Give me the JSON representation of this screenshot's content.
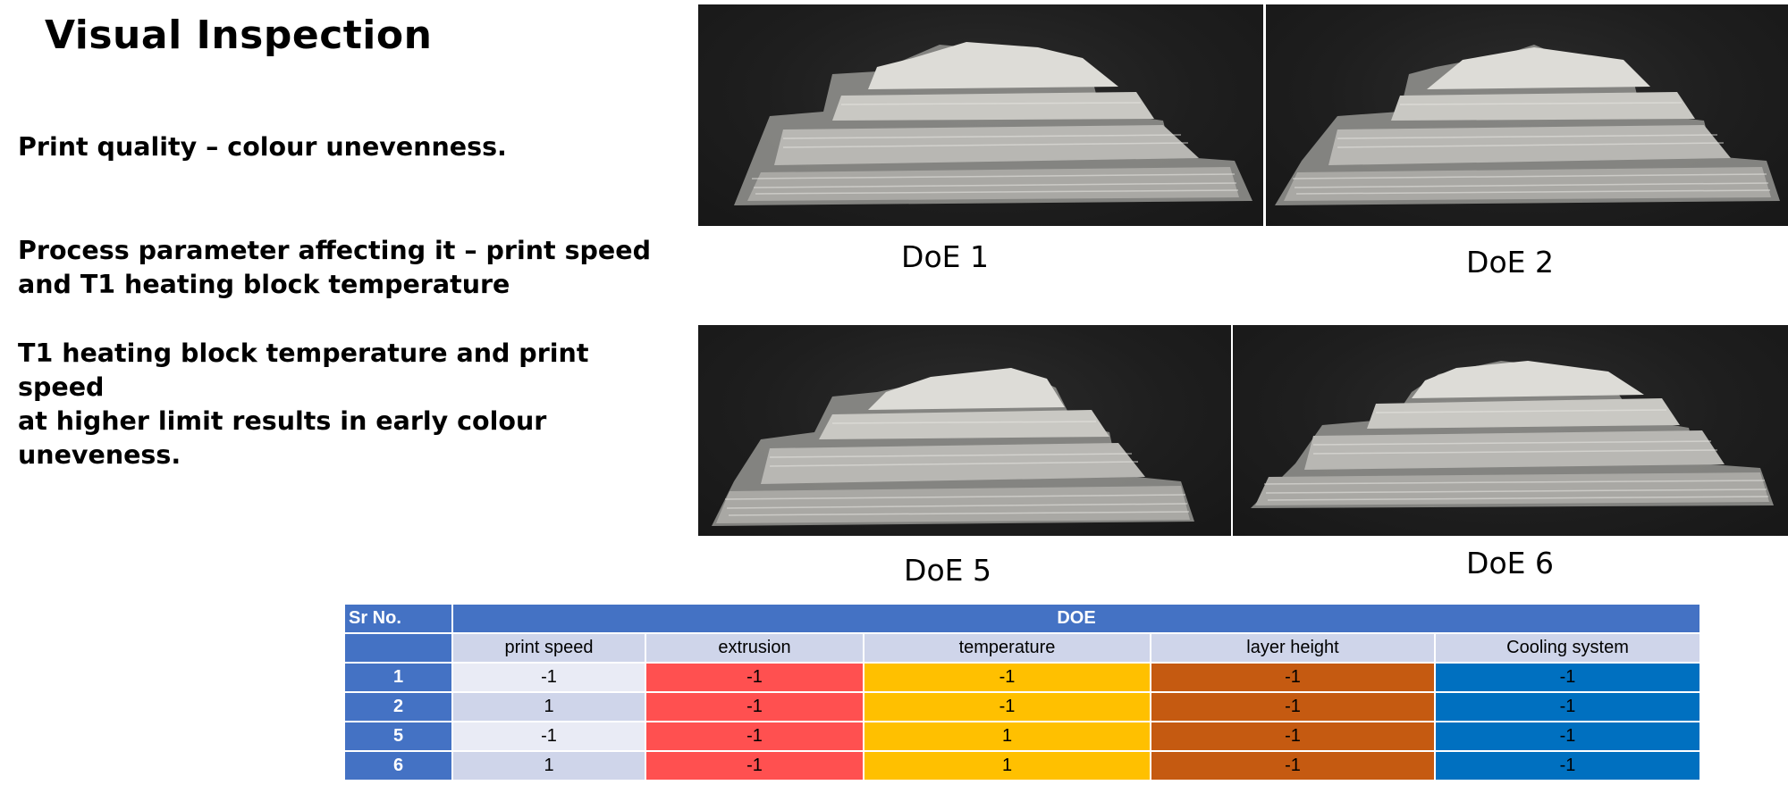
{
  "title": "Visual Inspection",
  "paragraphs": {
    "p1": "Print quality – colour unevenness.",
    "p2_line1": "Process parameter affecting it – print speed",
    "p2_line2": "and T1 heating block temperature",
    "p3_line1": "T1 heating block temperature and print speed",
    "p3_line2": "at higher limit results in early colour",
    "p3_line3": "uneveness."
  },
  "photos": [
    {
      "caption": "DoE 1"
    },
    {
      "caption": "DoE 2"
    },
    {
      "caption": "DoE 5"
    },
    {
      "caption": "DoE 6"
    }
  ],
  "table": {
    "sr_header": "Sr No.",
    "doe_header": "DOE",
    "columns": [
      "print speed",
      "extrusion",
      "temperature",
      "layer height",
      "Cooling system"
    ],
    "rows": [
      {
        "sr": "1",
        "values": [
          "-1",
          "-1",
          "-1",
          "-1",
          "-1"
        ]
      },
      {
        "sr": "2",
        "values": [
          "1",
          "-1",
          "-1",
          "-1",
          "-1"
        ]
      },
      {
        "sr": "5",
        "values": [
          "-1",
          "-1",
          "1",
          "-1",
          "-1"
        ]
      },
      {
        "sr": "6",
        "values": [
          "1",
          "-1",
          "1",
          "-1",
          "-1"
        ]
      }
    ],
    "colors": {
      "header": "#4472c4",
      "extrusion": "#ff5050",
      "temperature": "#ffc000",
      "layer_height": "#c55a11",
      "cooling_system": "#0070c0"
    }
  }
}
